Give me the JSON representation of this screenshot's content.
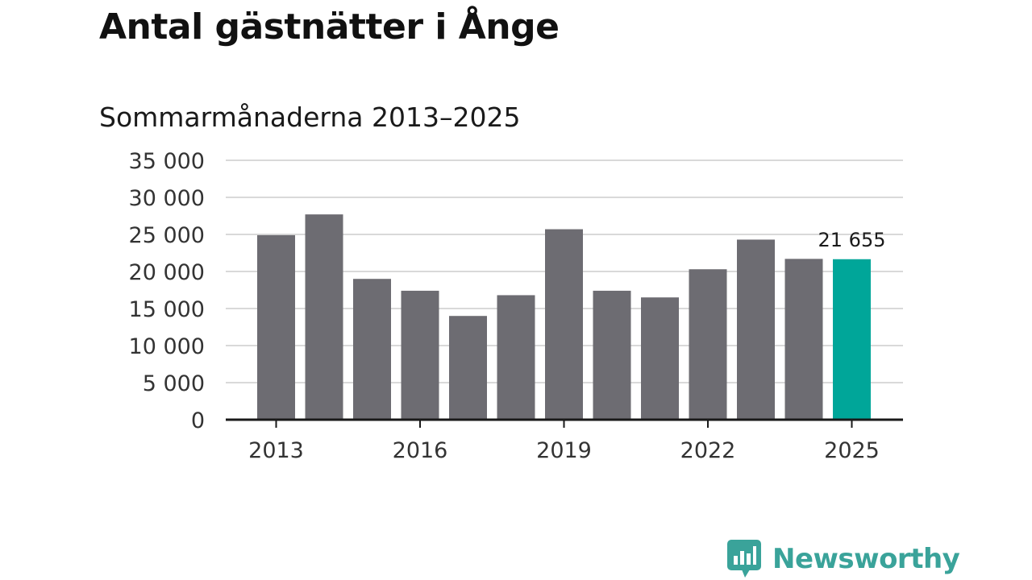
{
  "title": "Antal gästnätter i Ånge",
  "subtitle": "Sommarmånaderna 2013–2025",
  "brand": {
    "name": "Newsworthy",
    "color": "#3aa39a"
  },
  "colors": {
    "bar": "#6d6c72",
    "highlight": "#00a699",
    "grid": "#d9d9d9",
    "axis": "#1a1a1a"
  },
  "chart_data": {
    "type": "bar",
    "categories": [
      "2013",
      "2014",
      "2015",
      "2016",
      "2017",
      "2018",
      "2019",
      "2020",
      "2021",
      "2022",
      "2023",
      "2024",
      "2025"
    ],
    "values": [
      24900,
      27700,
      19000,
      17400,
      14000,
      16800,
      25700,
      17400,
      16500,
      20300,
      24300,
      21700,
      21655
    ],
    "x_tick_labels": [
      "2013",
      "2016",
      "2019",
      "2022",
      "2025"
    ],
    "y_ticks": [
      0,
      5000,
      10000,
      15000,
      20000,
      25000,
      30000,
      35000
    ],
    "y_tick_labels": [
      "0",
      "5 000",
      "10 000",
      "15 000",
      "20 000",
      "25 000",
      "30 000",
      "35 000"
    ],
    "ylim": [
      0,
      35000
    ],
    "highlight_index": 12,
    "data_label": "21 655",
    "grid": true,
    "xlabel": "",
    "ylabel": ""
  }
}
